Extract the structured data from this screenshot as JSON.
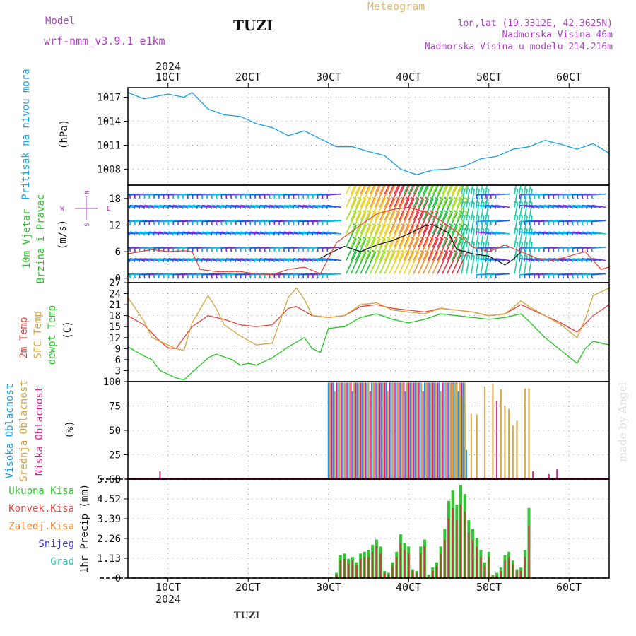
{
  "header": {
    "model_label": "Model",
    "model_name": "wrf-nmm_v3.9.1 e1km",
    "station": "TUZI",
    "product": "Meteogram",
    "lonlat": "lon,lat (19.3312E, 42.3625N)",
    "elevation": "Nadmorska Visina 46m",
    "model_elevation": "Nadmorska Visina u modelu 214.216m",
    "footer_station": "TUZI",
    "watermark": "made by Angel"
  },
  "colors": {
    "pressure": "#1aa0e6",
    "temp2m": "#e8413a",
    "sfc_temp": "#d9a43a",
    "dewpt": "#22c922",
    "high_cloud": "#1e96ea",
    "mid_cloud": "#d9a43a",
    "low_cloud": "#d81f8a",
    "total_precip": "#2fc62f",
    "conv_precip": "#c8373a",
    "frozen_precip": "#f08030",
    "snow": "#3c3ccd",
    "graupel": "#30c4b0",
    "wind_label": "#22c922",
    "wind_dir": "#b040c8"
  },
  "chart_data": {
    "type": "meteogram",
    "x_axis": {
      "top_year": "2024",
      "bottom_year": "2024",
      "tick_labels": [
        "10CT",
        "20CT",
        "30CT",
        "40CT",
        "50CT",
        "60CT"
      ],
      "range_days": [
        0.5,
        6.5
      ]
    },
    "panels": [
      {
        "id": "pressure",
        "type": "line",
        "ylabel": "Pritisak na nivou mora",
        "unit": "(hPa)",
        "yticks": [
          1008,
          1011,
          1014,
          1017
        ],
        "ylim": [
          1006,
          1018.2
        ],
        "series": [
          {
            "color": "#1aa0e6",
            "x": [
              0.5,
              0.7,
              1.0,
              1.2,
              1.3,
              1.5,
              1.7,
              1.9,
              2.1,
              2.3,
              2.5,
              2.7,
              2.9,
              3.1,
              3.3,
              3.5,
              3.7,
              3.9,
              4.1,
              4.3,
              4.5,
              4.7,
              4.9,
              5.1,
              5.3,
              5.5,
              5.7,
              5.9,
              6.1,
              6.3,
              6.5
            ],
            "y": [
              1017.6,
              1016.8,
              1017.4,
              1017.0,
              1017.6,
              1015.5,
              1014.8,
              1014.6,
              1013.7,
              1013.2,
              1012.2,
              1012.8,
              1011.8,
              1010.8,
              1010.8,
              1010.2,
              1009.7,
              1008.0,
              1007.3,
              1007.9,
              1008.0,
              1008.4,
              1009.3,
              1009.6,
              1010.5,
              1010.8,
              1011.6,
              1011.1,
              1010.5,
              1011.2,
              1010.0
            ]
          }
        ]
      },
      {
        "id": "wind",
        "type": "line+barbs",
        "ylabel": "10m Vjetar",
        "ylabel2": "Brzina i Pravac",
        "unit": "(m/s)",
        "compass": {
          "n": "N",
          "s": "S",
          "e": "E",
          "w": "W"
        },
        "yticks": [
          0,
          6,
          12,
          18
        ],
        "ylim": [
          -1,
          21
        ],
        "series": [
          {
            "name": "speed",
            "color": "#111111",
            "x": [
              2.9,
              3.0,
              3.2,
              3.4,
              3.6,
              3.8,
              4.0,
              4.2,
              4.3,
              4.5,
              4.6,
              4.8,
              5.0,
              5.2,
              5.3,
              5.4
            ],
            "y": [
              4.5,
              5.5,
              7.2,
              6.0,
              7.5,
              8.5,
              10.0,
              11.8,
              12.1,
              10.2,
              6.5,
              5.5,
              5.0,
              3.0,
              4.2,
              6.0
            ]
          },
          {
            "name": "gust",
            "color": "#e8413a",
            "x": [
              0.5,
              0.8,
              1.0,
              1.2,
              1.3,
              1.4,
              1.6,
              1.9,
              2.1,
              2.3,
              2.5,
              2.7,
              2.9,
              3.1,
              3.4,
              3.6,
              3.8,
              4.0,
              4.2,
              4.4,
              4.6,
              4.8,
              5.0,
              5.2,
              5.4,
              5.6,
              5.8,
              6.0,
              6.2,
              6.4,
              6.5
            ],
            "y": [
              5.5,
              6.5,
              6.0,
              6.2,
              6.0,
              2.0,
              1.5,
              1.5,
              1.0,
              0.8,
              2.0,
              2.5,
              1.0,
              8.0,
              12.0,
              14.5,
              15.5,
              16.0,
              15.0,
              13.0,
              10.5,
              7.0,
              6.0,
              7.5,
              6.0,
              4.5,
              4.0,
              5.0,
              6.0,
              2.0,
              2.5
            ]
          }
        ]
      },
      {
        "id": "temperature",
        "type": "line",
        "ylabel": "2m Temp",
        "ylabel2": "SFC Temp",
        "ylabel3": "dewpt Temp",
        "unit": "(C)",
        "yticks": [
          3,
          6,
          9,
          12,
          15,
          18,
          21,
          24,
          27
        ],
        "ylim": [
          0,
          27
        ],
        "series": [
          {
            "name": "2m Temp",
            "color": "#e8413a",
            "x": [
              0.5,
              0.7,
              0.9,
              1.0,
              1.1,
              1.3,
              1.5,
              1.7,
              1.9,
              2.1,
              2.3,
              2.5,
              2.6,
              2.8,
              3.0,
              3.2,
              3.4,
              3.6,
              3.8,
              4.0,
              4.2,
              4.4,
              4.6,
              4.8,
              5.0,
              5.2,
              5.4,
              5.5,
              5.7,
              5.9,
              6.1,
              6.3,
              6.5
            ],
            "y": [
              18.0,
              15.5,
              11.0,
              9.2,
              9.0,
              15.0,
              18.0,
              17.0,
              15.5,
              15.0,
              15.5,
              20.0,
              20.5,
              18.0,
              17.5,
              18.0,
              20.5,
              21.0,
              20.0,
              19.5,
              19.0,
              20.0,
              19.5,
              19.0,
              18.0,
              18.5,
              21.0,
              20.0,
              18.0,
              16.0,
              13.5,
              18.0,
              21.0
            ]
          },
          {
            "name": "SFC Temp",
            "color": "#d9a43a",
            "x": [
              0.5,
              0.7,
              0.8,
              0.9,
              1.0,
              1.1,
              1.2,
              1.3,
              1.5,
              1.6,
              1.7,
              1.9,
              2.1,
              2.3,
              2.5,
              2.6,
              2.7,
              2.8,
              3.0,
              3.2,
              3.4,
              3.6,
              3.8,
              4.0,
              4.2,
              4.4,
              4.6,
              4.8,
              5.0,
              5.2,
              5.4,
              5.5,
              5.7,
              5.9,
              6.1,
              6.2,
              6.3,
              6.5
            ],
            "y": [
              23.0,
              16.5,
              12.0,
              11.0,
              10.0,
              9.0,
              8.5,
              16.0,
              23.5,
              20.0,
              15.5,
              12.5,
              10.0,
              10.5,
              23.0,
              25.5,
              22.5,
              18.0,
              17.5,
              18.0,
              21.0,
              21.5,
              19.5,
              19.0,
              18.5,
              20.0,
              19.5,
              19.0,
              18.0,
              18.5,
              22.0,
              20.5,
              18.0,
              15.5,
              12.0,
              17.0,
              23.5,
              25.5
            ]
          },
          {
            "name": "dewpt Temp",
            "color": "#22c922",
            "x": [
              0.5,
              0.7,
              0.8,
              0.9,
              1.0,
              1.1,
              1.2,
              1.3,
              1.5,
              1.6,
              1.8,
              1.9,
              2.0,
              2.1,
              2.3,
              2.5,
              2.7,
              2.8,
              2.9,
              3.0,
              3.2,
              3.4,
              3.6,
              3.8,
              4.0,
              4.2,
              4.4,
              4.6,
              4.8,
              5.0,
              5.2,
              5.4,
              5.5,
              5.7,
              5.9,
              6.1,
              6.2,
              6.3,
              6.5
            ],
            "y": [
              9.5,
              7.0,
              6.0,
              3.0,
              2.0,
              1.0,
              0.5,
              2.5,
              6.5,
              7.5,
              6.0,
              4.5,
              5.0,
              4.5,
              6.5,
              9.5,
              12.0,
              9.0,
              8.0,
              14.5,
              15.0,
              17.5,
              18.5,
              17.0,
              16.0,
              17.0,
              18.5,
              18.0,
              17.5,
              17.0,
              17.5,
              18.5,
              16.5,
              12.0,
              8.5,
              5.0,
              9.0,
              11.0,
              10.0
            ]
          }
        ]
      },
      {
        "id": "cloud",
        "type": "bar",
        "ylabel": "Visoka Oblacnost",
        "ylabel2": "Srednja Oblacnost",
        "ylabel3": "Niska Oblacnost",
        "unit": "(%)",
        "yticks": [
          0,
          25,
          50,
          75,
          100
        ],
        "ylim": [
          0,
          100
        ]
      },
      {
        "id": "precip",
        "type": "bar",
        "ylabel": "1hr Precip (mm)",
        "yticks": [
          0,
          1.13,
          2.26,
          3.39,
          4.52,
          5.65
        ],
        "ylim": [
          0,
          5.65
        ],
        "legend": [
          "Ukupna Kisa",
          "Konvek.Kisa",
          "Zaledj.Kisa",
          "Snijeg",
          "Grad"
        ],
        "series": [
          {
            "name": "Ukupna Kisa",
            "color": "#2fc62f",
            "x": [
              3.1,
              3.15,
              3.2,
              3.25,
              3.3,
              3.35,
              3.4,
              3.45,
              3.5,
              3.55,
              3.6,
              3.65,
              3.7,
              3.75,
              3.8,
              3.85,
              3.9,
              3.95,
              4.0,
              4.05,
              4.1,
              4.15,
              4.2,
              4.25,
              4.3,
              4.35,
              4.4,
              4.45,
              4.5,
              4.55,
              4.6,
              4.65,
              4.7,
              4.75,
              4.8,
              4.85,
              4.9,
              4.95,
              5.0,
              5.05,
              5.1,
              5.15,
              5.2,
              5.25,
              5.3,
              5.35,
              5.4,
              5.45,
              5.5
            ],
            "y": [
              0.3,
              1.3,
              1.4,
              1.1,
              1.2,
              0.9,
              1.4,
              1.5,
              1.6,
              1.9,
              2.2,
              1.8,
              0.4,
              0.3,
              0.9,
              1.5,
              2.5,
              2.0,
              1.8,
              0.5,
              0.4,
              1.8,
              2.2,
              0.2,
              0.6,
              0.9,
              1.8,
              2.8,
              4.4,
              5.0,
              4.2,
              5.3,
              4.8,
              3.3,
              2.8,
              2.3,
              1.6,
              0.9,
              1.5,
              0.2,
              0.3,
              0.6,
              1.3,
              1.5,
              1.0,
              0.5,
              0.6,
              1.6,
              4.0
            ]
          },
          {
            "name": "Konvek.Kisa",
            "color": "#c8373a",
            "x": [
              3.1,
              3.15,
              3.2,
              3.25,
              3.3,
              3.35,
              3.4,
              3.45,
              3.5,
              3.55,
              3.6,
              3.65,
              3.7,
              3.75,
              3.8,
              3.85,
              3.9,
              3.95,
              4.0,
              4.05,
              4.1,
              4.15,
              4.2,
              4.25,
              4.3,
              4.35,
              4.4,
              4.45,
              4.5,
              4.55,
              4.6,
              4.65,
              4.7,
              4.75,
              4.8,
              4.85,
              4.9,
              4.95,
              5.0,
              5.05,
              5.1,
              5.15,
              5.2,
              5.25,
              5.3,
              5.35,
              5.4,
              5.45,
              5.5
            ],
            "y": [
              0.2,
              1.0,
              1.1,
              0.8,
              1.0,
              0.7,
              1.1,
              1.2,
              1.2,
              1.5,
              1.8,
              1.4,
              0.3,
              0.2,
              0.7,
              1.2,
              2.0,
              1.6,
              1.4,
              0.4,
              0.3,
              1.4,
              1.8,
              0.1,
              0.4,
              0.7,
              1.4,
              2.2,
              3.4,
              4.0,
              3.3,
              4.2,
              3.8,
              2.6,
              2.2,
              1.8,
              1.2,
              0.7,
              1.2,
              0.1,
              0.2,
              0.4,
              1.0,
              1.2,
              0.8,
              0.4,
              0.4,
              1.2,
              3.0
            ]
          }
        ]
      }
    ]
  }
}
